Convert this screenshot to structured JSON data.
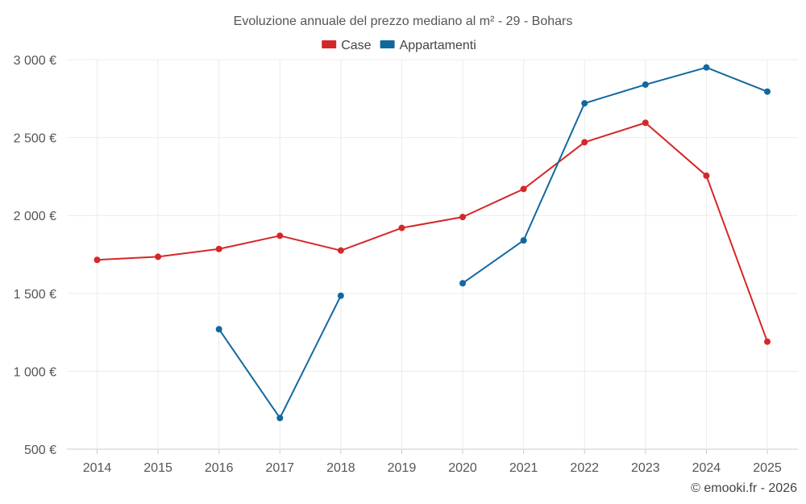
{
  "chart_data": {
    "type": "line",
    "title": "Evoluzione annuale del prezzo mediano al m² - 29 - Bohars",
    "xlabel": "",
    "ylabel": "",
    "categories": [
      "2014",
      "2015",
      "2016",
      "2017",
      "2018",
      "2019",
      "2020",
      "2021",
      "2022",
      "2023",
      "2024",
      "2025"
    ],
    "ylim": [
      500,
      3000
    ],
    "yticks": [
      500,
      1000,
      1500,
      2000,
      2500,
      3000
    ],
    "ytick_labels": [
      "500 €",
      "1 000 €",
      "1 500 €",
      "2 000 €",
      "2 500 €",
      "3 000 €"
    ],
    "grid": true,
    "legend_position": "top-center",
    "series": [
      {
        "name": "Case",
        "color": "#d62728",
        "values": [
          1715,
          1735,
          1785,
          1870,
          1775,
          1920,
          1990,
          2170,
          2470,
          2595,
          2255,
          1190
        ]
      },
      {
        "name": "Appartamenti",
        "color": "#11689f",
        "values": [
          null,
          null,
          1270,
          700,
          1485,
          null,
          1565,
          1840,
          2720,
          2840,
          2950,
          2795
        ]
      }
    ]
  },
  "credit": "© emooki.fr - 2026"
}
